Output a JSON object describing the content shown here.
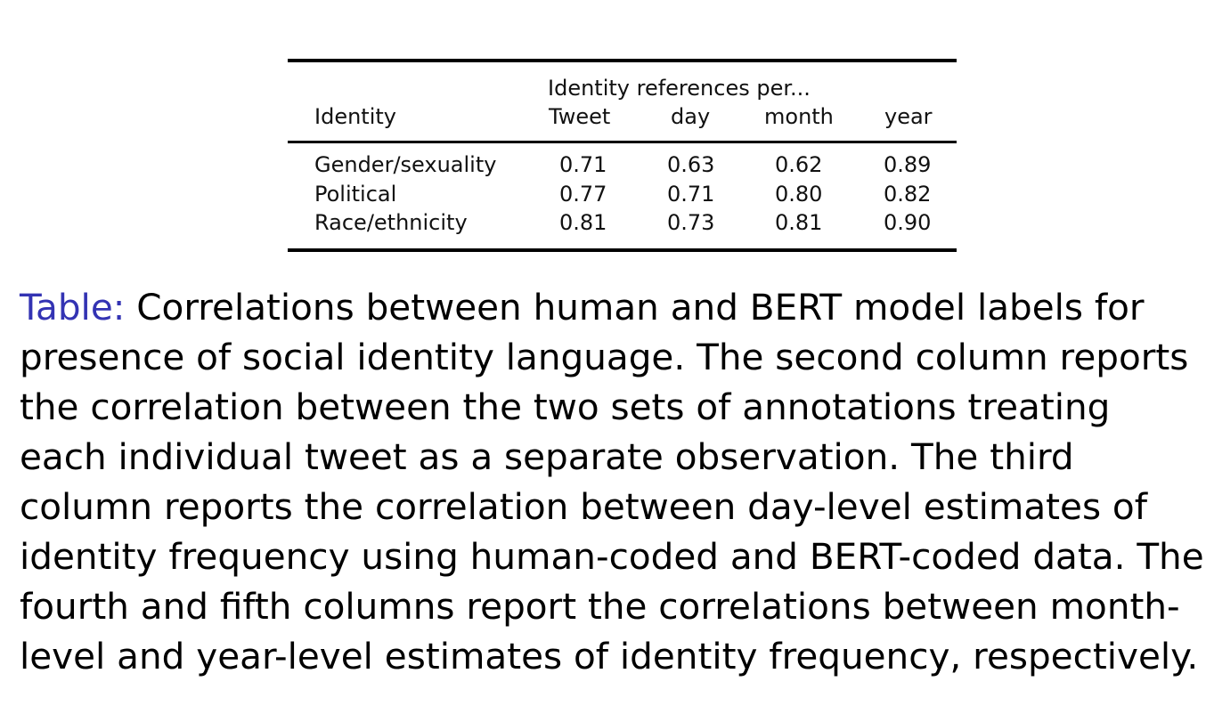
{
  "table": {
    "spanner_header": "Identity references per...",
    "columns": [
      "Identity",
      "Tweet",
      "day",
      "month",
      "year"
    ],
    "rows": [
      {
        "identity": "Gender/sexuality",
        "tweet": "0.71",
        "day": "0.63",
        "month": "0.62",
        "year": "0.89"
      },
      {
        "identity": "Political",
        "tweet": "0.77",
        "day": "0.71",
        "month": "0.80",
        "year": "0.82"
      },
      {
        "identity": "Race/ethnicity",
        "tweet": "0.81",
        "day": "0.73",
        "month": "0.81",
        "year": "0.90"
      }
    ]
  },
  "caption": {
    "label": "Table:",
    "text": "Correlations between human and BERT model labels for presence of social identity language. The second column reports the correlation between the two sets of annotations treating each individual tweet as a separate observation. The third column reports the correlation between day-level estimates of identity frequency using human-coded and BERT-coded data. The fourth and fifth columns report the correlations between month-level and year-level estimates of identity frequency, respectively."
  },
  "colors": {
    "caption_label": "#3333b3",
    "text": "#000000"
  }
}
